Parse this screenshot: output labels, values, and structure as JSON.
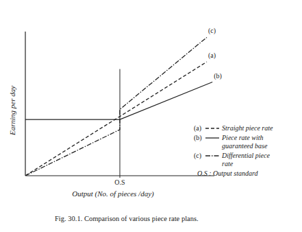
{
  "chart_data": {
    "type": "line",
    "x_label": "Output (No. of pieces /day)",
    "y_label": "Earning per day",
    "caption": "Fig. 30.1. Comparison of various piece rate plans.",
    "xlim": [
      0,
      10
    ],
    "ylim": [
      0,
      10
    ],
    "xticks": [
      {
        "value": 5,
        "label": "O.S"
      }
    ],
    "yticks": [],
    "tick_labels": "x",
    "grid": false,
    "legend": "right",
    "legend_note": "O.S : Output standard",
    "vertical_line": {
      "x": 5,
      "y": [
        0,
        7.4
      ]
    },
    "series": [
      {
        "name": "Straight piece rate",
        "label": "(a)",
        "color": "#222222",
        "line_style": "dashed",
        "x": [
          0,
          9.6
        ],
        "values": [
          0,
          7.9
        ]
      },
      {
        "name": "Piece rate with guaranteed base",
        "label": "(b)",
        "color": "#222222",
        "line_style": "solid",
        "x": [
          0,
          5,
          9.9
        ],
        "values": [
          3.9,
          3.9,
          6.5
        ]
      },
      {
        "name": "Differential piece rate",
        "label": "(c)",
        "color": "#222222",
        "line_style": "dashdot",
        "x": [
          0,
          5,
          5,
          9.6
        ],
        "values": [
          0,
          3.2,
          4.6,
          9.6
        ]
      }
    ]
  }
}
